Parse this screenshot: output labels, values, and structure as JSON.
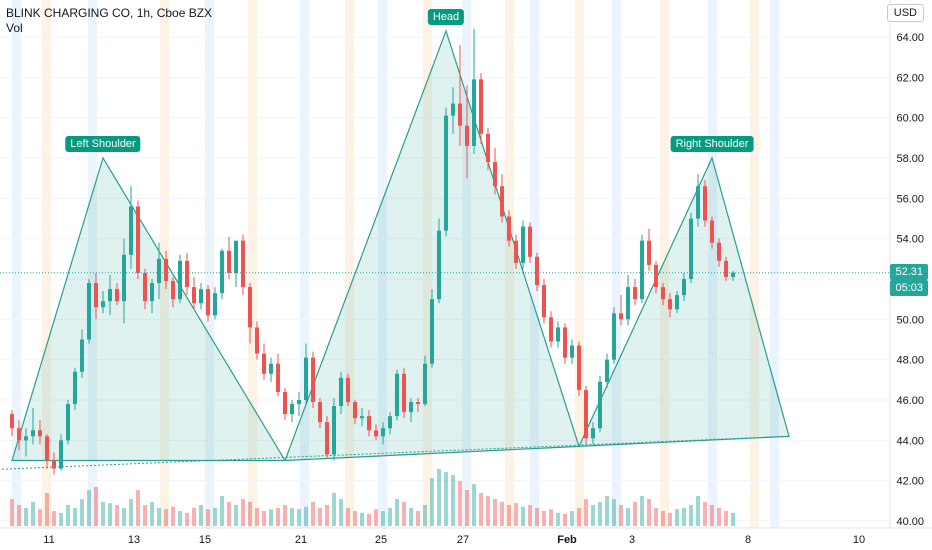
{
  "header": {
    "symbol_line": "BLINK CHARGING CO, 1h, Cboe BZX",
    "volume_label": "Vol",
    "currency": "USD"
  },
  "price_tags": {
    "last_price": "52.31",
    "countdown": "05:03"
  },
  "colors": {
    "up": "#26a69a",
    "down": "#ef5350",
    "pattern_line": "#2a9d8f",
    "pattern_fill": "#26a69a",
    "label_bg": "#089981",
    "band_blue": "#e3f0fb",
    "band_orange": "#fdecd9"
  },
  "annotations": [
    {
      "label": "Left Shoulder"
    },
    {
      "label": "Head"
    },
    {
      "label": "Right Shoulder"
    }
  ],
  "chart_data": {
    "type": "candlestick",
    "title": "BLINK CHARGING CO, 1h, Cboe BZX",
    "y_axis_ticks": [
      "64.00",
      "62.00",
      "60.00",
      "58.00",
      "56.00",
      "54.00",
      "52.00",
      "50.00",
      "48.00",
      "46.00",
      "44.00",
      "42.00",
      "40.00"
    ],
    "ylim": [
      39.8,
      65.3
    ],
    "x_axis_ticks": [
      "11",
      "13",
      "15",
      "21",
      "25",
      "27",
      "Feb",
      "3",
      "8",
      "10"
    ],
    "last_price": 52.31,
    "pattern": {
      "name": "Head and Shoulders",
      "points": [
        {
          "label": "",
          "x_index": 0,
          "price": 43.0
        },
        {
          "label": "Left Shoulder",
          "x_index": 13,
          "price": 58.0
        },
        {
          "label": "",
          "x_index": 39,
          "price": 43.0
        },
        {
          "label": "Head",
          "x_index": 62,
          "price": 64.3
        },
        {
          "label": "",
          "x_index": 81,
          "price": 43.7
        },
        {
          "label": "Right Shoulder",
          "x_index": 100,
          "price": 58.0
        },
        {
          "label": "",
          "x_index": 111,
          "price": 44.2
        }
      ],
      "neckline": [
        {
          "x_index": -6,
          "price": 42.5
        },
        {
          "x_index": 111,
          "price": 44.2
        }
      ]
    },
    "candles": [
      [
        45.3,
        45.5,
        44.2,
        44.6
      ],
      [
        44.6,
        45.0,
        43.5,
        44.0
      ],
      [
        44.0,
        44.6,
        43.2,
        44.2
      ],
      [
        44.2,
        45.6,
        43.8,
        44.5
      ],
      [
        44.5,
        45.0,
        43.8,
        44.2
      ],
      [
        44.2,
        44.3,
        42.6,
        43.0
      ],
      [
        43.0,
        43.4,
        42.3,
        42.6
      ],
      [
        42.6,
        44.3,
        42.5,
        44.0
      ],
      [
        44.0,
        46.0,
        43.8,
        45.8
      ],
      [
        45.8,
        47.6,
        45.5,
        47.4
      ],
      [
        47.4,
        49.5,
        47.1,
        49.0
      ],
      [
        49.0,
        52.0,
        48.8,
        51.8
      ],
      [
        51.8,
        52.3,
        50.0,
        50.6
      ],
      [
        50.6,
        51.4,
        50.3,
        50.9
      ],
      [
        50.9,
        52.2,
        50.2,
        51.5
      ],
      [
        51.5,
        51.8,
        50.7,
        50.9
      ],
      [
        50.9,
        54.0,
        49.8,
        53.2
      ],
      [
        53.2,
        56.6,
        52.5,
        55.6
      ],
      [
        55.6,
        55.9,
        52.0,
        52.3
      ],
      [
        52.3,
        52.5,
        50.5,
        50.9
      ],
      [
        50.9,
        52.0,
        50.3,
        51.8
      ],
      [
        51.8,
        53.8,
        51.0,
        53.0
      ],
      [
        53.0,
        53.4,
        51.5,
        51.9
      ],
      [
        51.9,
        52.1,
        50.6,
        51.0
      ],
      [
        51.0,
        53.2,
        50.8,
        52.9
      ],
      [
        52.9,
        53.3,
        51.2,
        51.6
      ],
      [
        51.6,
        52.1,
        50.5,
        50.8
      ],
      [
        50.8,
        51.8,
        50.5,
        51.5
      ],
      [
        51.5,
        51.7,
        49.9,
        50.2
      ],
      [
        50.2,
        51.6,
        50.0,
        51.3
      ],
      [
        51.3,
        53.5,
        51.0,
        53.4
      ],
      [
        53.4,
        54.1,
        52.0,
        52.3
      ],
      [
        52.3,
        53.8,
        51.6,
        53.9
      ],
      [
        53.9,
        54.2,
        51.2,
        51.6
      ],
      [
        51.6,
        51.8,
        48.8,
        49.6
      ],
      [
        49.6,
        49.9,
        48.0,
        48.3
      ],
      [
        48.3,
        48.8,
        47.0,
        47.3
      ],
      [
        47.3,
        48.1,
        46.9,
        47.8
      ],
      [
        47.8,
        48.3,
        46.2,
        46.4
      ],
      [
        46.4,
        46.6,
        45.0,
        45.3
      ],
      [
        45.3,
        46.0,
        44.9,
        45.8
      ],
      [
        45.8,
        46.4,
        45.2,
        46.0
      ],
      [
        46.0,
        48.8,
        45.8,
        48.1
      ],
      [
        48.1,
        48.4,
        45.6,
        45.9
      ],
      [
        45.9,
        46.1,
        44.6,
        44.9
      ],
      [
        44.9,
        45.2,
        43.1,
        43.3
      ],
      [
        43.3,
        46.1,
        43.0,
        45.7
      ],
      [
        45.7,
        47.4,
        45.3,
        47.1
      ],
      [
        47.1,
        47.3,
        45.7,
        45.9
      ],
      [
        45.9,
        46.0,
        44.8,
        45.1
      ],
      [
        45.1,
        45.6,
        44.7,
        45.2
      ],
      [
        45.2,
        45.5,
        44.2,
        44.5
      ],
      [
        44.5,
        44.8,
        44.0,
        44.2
      ],
      [
        44.2,
        44.9,
        43.8,
        44.6
      ],
      [
        44.6,
        45.4,
        44.3,
        45.2
      ],
      [
        45.2,
        47.5,
        45.0,
        47.3
      ],
      [
        47.3,
        47.6,
        45.1,
        45.4
      ],
      [
        45.4,
        46.1,
        44.9,
        45.9
      ],
      [
        45.9,
        46.1,
        45.4,
        45.8
      ],
      [
        45.8,
        48.2,
        45.7,
        47.8
      ],
      [
        47.8,
        51.5,
        47.6,
        51.0
      ],
      [
        51.0,
        55.0,
        50.8,
        54.4
      ],
      [
        54.4,
        60.5,
        54.1,
        60.1
      ],
      [
        60.1,
        61.5,
        59.2,
        60.7
      ],
      [
        60.7,
        63.6,
        58.6,
        59.6
      ],
      [
        59.6,
        61.6,
        57.0,
        58.6
      ],
      [
        58.6,
        64.4,
        58.2,
        61.9
      ],
      [
        61.9,
        62.2,
        58.7,
        59.2
      ],
      [
        59.2,
        59.5,
        57.4,
        57.8
      ],
      [
        57.8,
        58.5,
        56.2,
        56.6
      ],
      [
        56.6,
        57.2,
        54.8,
        55.1
      ],
      [
        55.1,
        55.4,
        53.6,
        53.9
      ],
      [
        53.9,
        54.2,
        52.5,
        52.8
      ],
      [
        52.8,
        54.9,
        52.5,
        54.6
      ],
      [
        54.6,
        54.8,
        52.8,
        53.1
      ],
      [
        53.1,
        53.3,
        51.4,
        51.7
      ],
      [
        51.7,
        52.0,
        49.8,
        50.1
      ],
      [
        50.1,
        50.4,
        48.6,
        48.9
      ],
      [
        48.9,
        49.9,
        48.6,
        49.6
      ],
      [
        49.6,
        49.8,
        47.8,
        48.1
      ],
      [
        48.1,
        49.0,
        47.8,
        48.7
      ],
      [
        48.7,
        48.9,
        46.2,
        46.5
      ],
      [
        46.5,
        46.7,
        43.8,
        44.1
      ],
      [
        44.1,
        44.9,
        43.8,
        44.6
      ],
      [
        44.6,
        47.2,
        44.4,
        46.9
      ],
      [
        46.9,
        48.3,
        46.6,
        48.0
      ],
      [
        48.0,
        50.6,
        47.8,
        50.3
      ],
      [
        50.3,
        51.2,
        49.7,
        50.0
      ],
      [
        50.0,
        52.2,
        49.7,
        51.6
      ],
      [
        51.6,
        52.0,
        50.7,
        51.0
      ],
      [
        51.0,
        54.2,
        50.8,
        53.9
      ],
      [
        53.9,
        54.5,
        52.4,
        52.7
      ],
      [
        52.7,
        52.9,
        51.3,
        51.6
      ],
      [
        51.6,
        51.8,
        50.7,
        51.0
      ],
      [
        51.0,
        51.3,
        50.1,
        50.5
      ],
      [
        50.5,
        51.4,
        50.3,
        51.2
      ],
      [
        51.2,
        52.3,
        50.9,
        52.0
      ],
      [
        52.0,
        55.3,
        51.8,
        55.0
      ],
      [
        55.0,
        57.2,
        54.6,
        56.6
      ],
      [
        56.6,
        56.9,
        54.6,
        54.9
      ],
      [
        54.9,
        55.1,
        53.5,
        53.8
      ],
      [
        53.8,
        54.0,
        52.6,
        52.9
      ],
      [
        52.9,
        53.1,
        51.9,
        52.1
      ],
      [
        52.1,
        52.4,
        51.9,
        52.31
      ]
    ],
    "volumes": [
      0.45,
      0.35,
      0.3,
      0.4,
      0.28,
      0.55,
      0.25,
      0.22,
      0.35,
      0.3,
      0.45,
      0.6,
      0.65,
      0.4,
      0.38,
      0.35,
      0.3,
      0.45,
      0.6,
      0.35,
      0.4,
      0.3,
      0.28,
      0.32,
      0.25,
      0.22,
      0.3,
      0.35,
      0.28,
      0.3,
      0.5,
      0.4,
      0.35,
      0.45,
      0.4,
      0.3,
      0.25,
      0.28,
      0.3,
      0.35,
      0.3,
      0.28,
      0.32,
      0.4,
      0.3,
      0.35,
      0.55,
      0.45,
      0.3,
      0.25,
      0.22,
      0.2,
      0.28,
      0.25,
      0.3,
      0.45,
      0.4,
      0.3,
      0.25,
      0.35,
      0.8,
      0.95,
      0.9,
      0.85,
      0.75,
      0.6,
      0.7,
      0.55,
      0.5,
      0.45,
      0.4,
      0.35,
      0.38,
      0.32,
      0.35,
      0.3,
      0.25,
      0.28,
      0.22,
      0.2,
      0.25,
      0.3,
      0.45,
      0.35,
      0.4,
      0.5,
      0.45,
      0.35,
      0.3,
      0.4,
      0.5,
      0.45,
      0.3,
      0.25,
      0.22,
      0.28,
      0.3,
      0.35,
      0.5,
      0.4,
      0.35,
      0.3,
      0.25,
      0.22
    ]
  }
}
